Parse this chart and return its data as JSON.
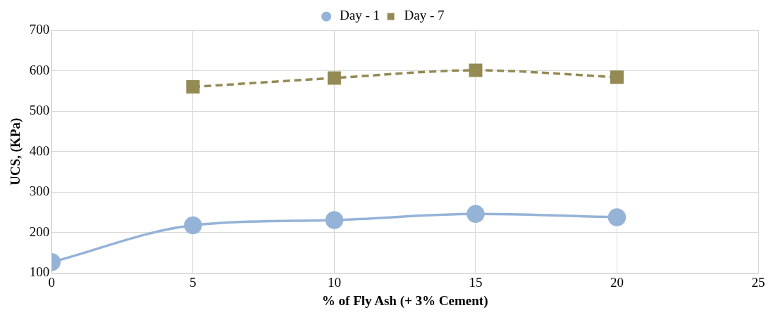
{
  "chart_data": {
    "type": "line",
    "xlabel": "% of Fly Ash (+ 3% Cement)",
    "ylabel": "UCS, (KPa)",
    "xlim": [
      0,
      25
    ],
    "xticks": [
      0,
      5,
      10,
      15,
      20,
      25
    ],
    "ylim": [
      100,
      700
    ],
    "yticks": [
      100,
      200,
      300,
      400,
      500,
      600,
      700
    ],
    "grid": true,
    "legend": "top",
    "series": [
      {
        "name": "Day - 1",
        "color": "#95b3d7",
        "x": [
          0,
          5,
          10,
          15,
          20
        ],
        "values": [
          127,
          218,
          231,
          246,
          238
        ],
        "marker": "circle",
        "line_style": "solid"
      },
      {
        "name": "Day - 7",
        "color": "#948a54",
        "x": [
          5,
          10,
          15,
          20
        ],
        "values": [
          560,
          582,
          601,
          584
        ],
        "marker": "square",
        "line_style": "dashed"
      }
    ]
  }
}
